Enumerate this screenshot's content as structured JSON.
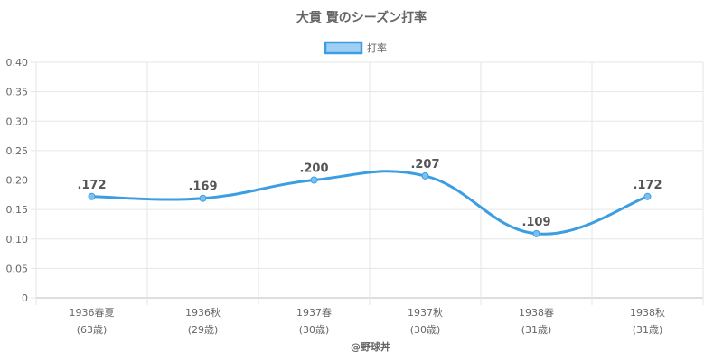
{
  "chart_data": {
    "type": "line",
    "title": "大貫 賢のシーズン打率",
    "legend": {
      "label": "打率",
      "position": "top"
    },
    "categories": [
      {
        "season": "1936春夏",
        "age": "(63歳)"
      },
      {
        "season": "1936秋",
        "age": "(29歳)"
      },
      {
        "season": "1937春",
        "age": "(30歳)"
      },
      {
        "season": "1937秋",
        "age": "(30歳)"
      },
      {
        "season": "1938春",
        "age": "(31歳)"
      },
      {
        "season": "1938秋",
        "age": "(31歳)"
      }
    ],
    "series": [
      {
        "name": "打率",
        "values": [
          0.172,
          0.169,
          0.2,
          0.207,
          0.109,
          0.172
        ],
        "labels": [
          ".172",
          ".169",
          ".200",
          ".207",
          ".109",
          ".172"
        ]
      }
    ],
    "ylim": [
      0,
      0.4
    ],
    "yticks": [
      "0",
      "0.05",
      "0.10",
      "0.15",
      "0.20",
      "0.25",
      "0.30",
      "0.35",
      "0.40"
    ],
    "grid": true,
    "colors": {
      "line": "#3b9ee2",
      "point_fill": "#7cc0ef",
      "legend_fill": "#9fd0f3",
      "grid": "#e6e6e6"
    }
  },
  "credit": "@野球丼"
}
